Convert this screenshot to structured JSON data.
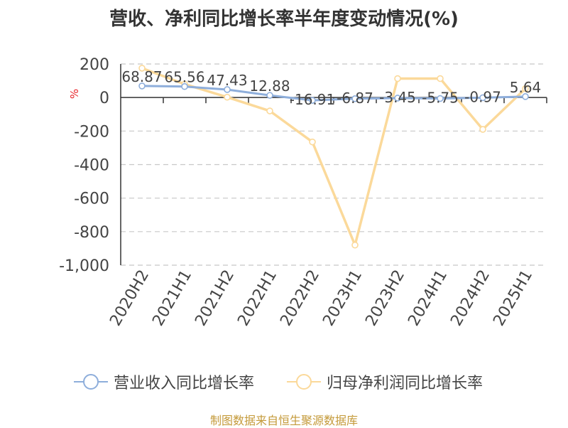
{
  "title": "营收、净利同比增长率半年度变动情况(%)",
  "source": "制图数据来自恒生聚源数据库",
  "colors": {
    "revenue": "#8eaedb",
    "profit": "#fbd99a",
    "grid": "#c8c8c8",
    "axis": "#333333",
    "unit": "#e8262b",
    "text": "#444444"
  },
  "chart_data": {
    "type": "line",
    "title": "营收、净利同比增长率半年度变动情况(%)",
    "ylabel": "%",
    "ylim": [
      -1000,
      200
    ],
    "yticks": [
      200,
      0,
      -200,
      -400,
      -600,
      -800,
      -1000
    ],
    "ytick_labels": [
      "200",
      "0",
      "-200",
      "-400",
      "-600",
      "-800",
      "-1,000"
    ],
    "grid": true,
    "legend_position": "bottom",
    "categories": [
      "2020H2",
      "2021H1",
      "2021H2",
      "2022H1",
      "2022H2",
      "2023H1",
      "2023H2",
      "2024H1",
      "2024H2",
      "2025H1"
    ],
    "series": [
      {
        "name": "营业收入同比增长率",
        "values": [
          68.87,
          65.56,
          47.43,
          12.88,
          -16.91,
          -6.87,
          -3.45,
          -5.75,
          -0.97,
          5.64
        ],
        "labels": [
          "68.87",
          "65.56",
          "47.43",
          "12.88",
          "-16.91",
          "-6.87",
          "-3.45",
          "-5.75",
          "-0.97",
          "5.64"
        ]
      },
      {
        "name": "归母净利润同比增长率",
        "values": [
          175,
          80,
          2,
          -80,
          -265,
          -880,
          113,
          113,
          -190,
          53
        ]
      }
    ]
  }
}
